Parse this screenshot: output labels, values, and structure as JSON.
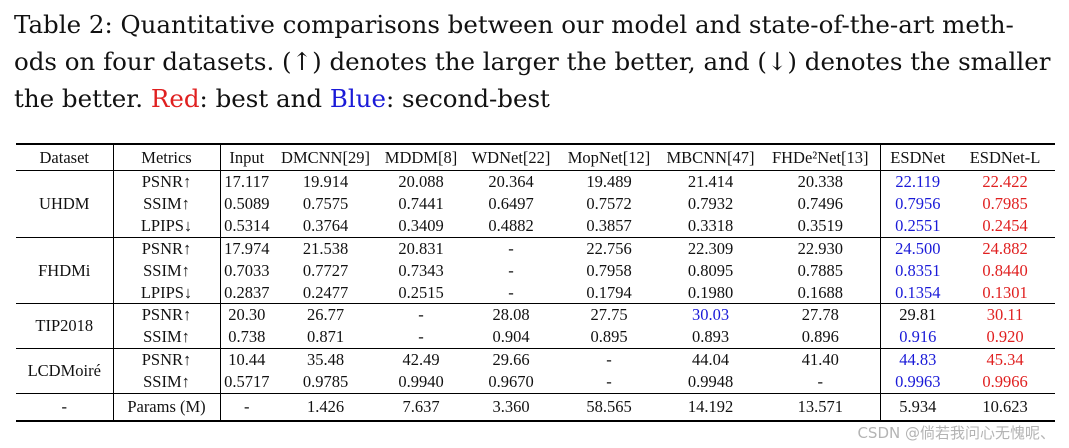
{
  "caption": {
    "line1": "Table 2: Quantitative comparisons between our model and state-of-the-art meth-",
    "line2": "ods on four datasets. (↑) denotes the larger the better, and (↓) denotes the smaller",
    "line3_pre": "the better. ",
    "red_word": "Red",
    "mid": ": best and ",
    "blue_word": "Blue",
    "post": ": second-best"
  },
  "headers": [
    "Dataset",
    "Metrics",
    "Input",
    "DMCNN[29]",
    "MDDM[8]",
    "WDNet[22]",
    "MopNet[12]",
    "MBCNN[47]",
    "FHDe²Net[13]",
    "ESDNet",
    "ESDNet-L"
  ],
  "groups": [
    {
      "dataset": "UHDM",
      "rows": [
        {
          "metric": "PSNR↑",
          "values": [
            "17.117",
            "19.914",
            "20.088",
            "20.364",
            "19.489",
            "21.414",
            "20.338",
            "22.119",
            "22.422"
          ],
          "colors": [
            "",
            "",
            "",
            "",
            "",
            "",
            "",
            "blue",
            "red"
          ]
        },
        {
          "metric": "SSIM↑",
          "values": [
            "0.5089",
            "0.7575",
            "0.7441",
            "0.6497",
            "0.7572",
            "0.7932",
            "0.7496",
            "0.7956",
            "0.7985"
          ],
          "colors": [
            "",
            "",
            "",
            "",
            "",
            "",
            "",
            "blue",
            "red"
          ]
        },
        {
          "metric": "LPIPS↓",
          "values": [
            "0.5314",
            "0.3764",
            "0.3409",
            "0.4882",
            "0.3857",
            "0.3318",
            "0.3519",
            "0.2551",
            "0.2454"
          ],
          "colors": [
            "",
            "",
            "",
            "",
            "",
            "",
            "",
            "blue",
            "red"
          ]
        }
      ]
    },
    {
      "dataset": "FHDMi",
      "rows": [
        {
          "metric": "PSNR↑",
          "values": [
            "17.974",
            "21.538",
            "20.831",
            "-",
            "22.756",
            "22.309",
            "22.930",
            "24.500",
            "24.882"
          ],
          "colors": [
            "",
            "",
            "",
            "",
            "",
            "",
            "",
            "blue",
            "red"
          ]
        },
        {
          "metric": "SSIM↑",
          "values": [
            "0.7033",
            "0.7727",
            "0.7343",
            "-",
            "0.7958",
            "0.8095",
            "0.7885",
            "0.8351",
            "0.8440"
          ],
          "colors": [
            "",
            "",
            "",
            "",
            "",
            "",
            "",
            "blue",
            "red"
          ]
        },
        {
          "metric": "LPIPS↓",
          "values": [
            "0.2837",
            "0.2477",
            "0.2515",
            "-",
            "0.1794",
            "0.1980",
            "0.1688",
            "0.1354",
            "0.1301"
          ],
          "colors": [
            "",
            "",
            "",
            "",
            "",
            "",
            "",
            "blue",
            "red"
          ]
        }
      ]
    },
    {
      "dataset": "TIP2018",
      "rows": [
        {
          "metric": "PSNR↑",
          "values": [
            "20.30",
            "26.77",
            "-",
            "28.08",
            "27.75",
            "30.03",
            "27.78",
            "29.81",
            "30.11"
          ],
          "colors": [
            "",
            "",
            "",
            "",
            "",
            "blue",
            "",
            "",
            "red"
          ]
        },
        {
          "metric": "SSIM↑",
          "values": [
            "0.738",
            "0.871",
            "-",
            "0.904",
            "0.895",
            "0.893",
            "0.896",
            "0.916",
            "0.920"
          ],
          "colors": [
            "",
            "",
            "",
            "",
            "",
            "",
            "",
            "blue",
            "red"
          ]
        }
      ]
    },
    {
      "dataset": "LCDMoiré",
      "rows": [
        {
          "metric": "PSNR↑",
          "values": [
            "10.44",
            "35.48",
            "42.49",
            "29.66",
            "-",
            "44.04",
            "41.40",
            "44.83",
            "45.34"
          ],
          "colors": [
            "",
            "",
            "",
            "",
            "",
            "",
            "",
            "blue",
            "red"
          ]
        },
        {
          "metric": "SSIM↑",
          "values": [
            "0.5717",
            "0.9785",
            "0.9940",
            "0.9670",
            "-",
            "0.9948",
            "-",
            "0.9963",
            "0.9966"
          ],
          "colors": [
            "",
            "",
            "",
            "",
            "",
            "",
            "",
            "blue",
            "red"
          ]
        }
      ]
    }
  ],
  "params_row": {
    "dataset": "-",
    "metric": "Params (M)",
    "values": [
      "-",
      "1.426",
      "7.637",
      "3.360",
      "58.565",
      "14.192",
      "13.571",
      "5.934",
      "10.623"
    ]
  },
  "colors": {
    "best": "#e02020",
    "second": "#1a1ad8"
  },
  "watermark": "CSDN @倘若我问心无愧呢、"
}
